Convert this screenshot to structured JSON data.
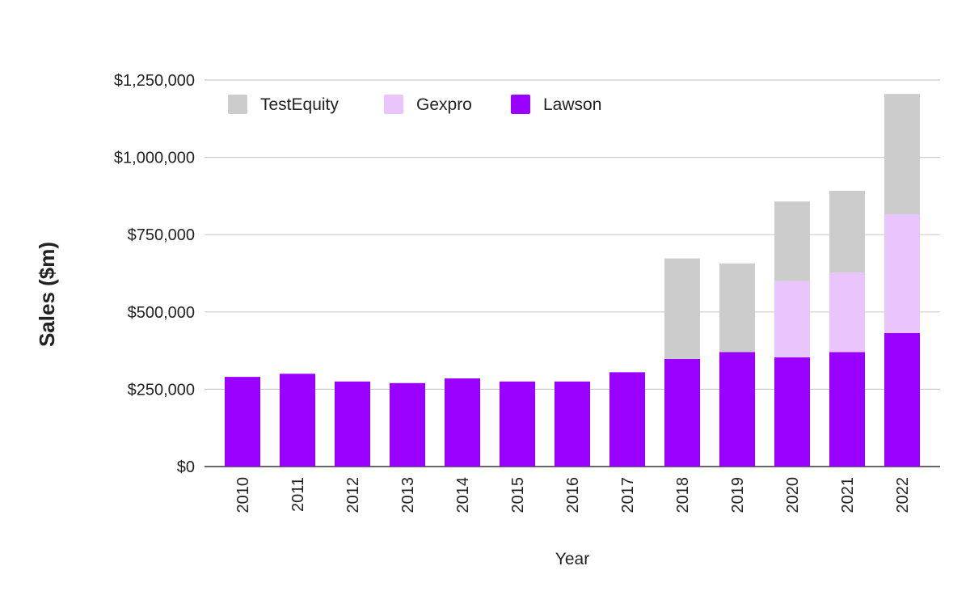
{
  "chart_data": {
    "type": "bar",
    "stacked": true,
    "title": "",
    "xlabel": "Year",
    "ylabel": "Sales ($m)",
    "categories": [
      "2010",
      "2011",
      "2012",
      "2013",
      "2014",
      "2015",
      "2016",
      "2017",
      "2018",
      "2019",
      "2020",
      "2021",
      "2022"
    ],
    "series": [
      {
        "name": "Lawson",
        "color": "#9900ff",
        "values": [
          290000,
          300000,
          275000,
          270000,
          285000,
          275000,
          275000,
          305000,
          348000,
          370000,
          353000,
          370000,
          432000
        ]
      },
      {
        "name": "Gexpro",
        "color": "#eac4fc",
        "values": [
          0,
          0,
          0,
          0,
          0,
          0,
          0,
          0,
          0,
          0,
          247000,
          257000,
          383000
        ]
      },
      {
        "name": "TestEquity",
        "color": "#cccccc",
        "values": [
          0,
          0,
          0,
          0,
          0,
          0,
          0,
          0,
          325000,
          287000,
          257000,
          265000,
          390000
        ]
      }
    ],
    "legend_order": [
      "TestEquity",
      "Gexpro",
      "Lawson"
    ],
    "ylim": [
      0,
      1250000
    ],
    "yticks": [
      0,
      250000,
      500000,
      750000,
      1000000,
      1250000
    ],
    "ytick_labels": [
      "$0",
      "$250,000",
      "$500,000",
      "$750,000",
      "$1,000,000",
      "$1,250,000"
    ],
    "grid": true,
    "legend_position": "top-left"
  }
}
